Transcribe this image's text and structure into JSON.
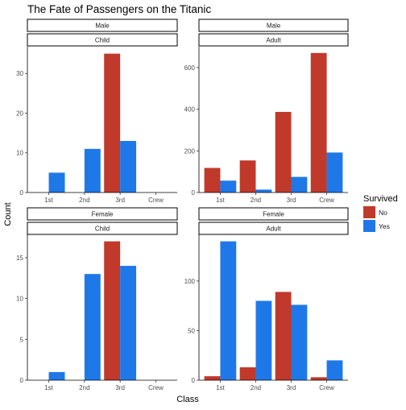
{
  "chart_data": {
    "type": "bar",
    "title": "The Fate of Passengers on the Titanic",
    "xlabel": "Class",
    "ylabel": "Count",
    "categories": [
      "1st",
      "2nd",
      "3rd",
      "Crew"
    ],
    "legend": {
      "title": "Survived",
      "placement": "right",
      "entries": [
        {
          "name": "No",
          "color": "#c0392b"
        },
        {
          "name": "Yes",
          "color": "#1f78e8"
        }
      ]
    },
    "panels": [
      {
        "strip_top": "Male",
        "strip_bottom": "Child",
        "ylim": [
          0,
          36.75
        ],
        "yticks": [
          0,
          10,
          20,
          30
        ],
        "series": [
          {
            "name": "No",
            "values": [
              0,
              0,
              35,
              0
            ]
          },
          {
            "name": "Yes",
            "values": [
              5,
              11,
              13,
              0
            ]
          }
        ]
      },
      {
        "strip_top": "Male",
        "strip_bottom": "Adult",
        "ylim": [
          0,
          700
        ],
        "yticks": [
          0,
          200,
          400,
          600
        ],
        "series": [
          {
            "name": "No",
            "values": [
              118,
              154,
              387,
              670
            ]
          },
          {
            "name": "Yes",
            "values": [
              57,
              14,
              75,
              192
            ]
          }
        ]
      },
      {
        "strip_top": "Female",
        "strip_bottom": "Child",
        "ylim": [
          0,
          17.85
        ],
        "yticks": [
          0,
          5,
          10,
          15
        ],
        "series": [
          {
            "name": "No",
            "values": [
              0,
              0,
              17,
              0
            ]
          },
          {
            "name": "Yes",
            "values": [
              1,
              13,
              14,
              0
            ]
          }
        ]
      },
      {
        "strip_top": "Female",
        "strip_bottom": "Adult",
        "ylim": [
          0,
          147
        ],
        "yticks": [
          0,
          50,
          100
        ],
        "series": [
          {
            "name": "No",
            "values": [
              4,
              13,
              89,
              3
            ]
          },
          {
            "name": "Yes",
            "values": [
              140,
              80,
              76,
              20
            ]
          }
        ]
      }
    ]
  }
}
